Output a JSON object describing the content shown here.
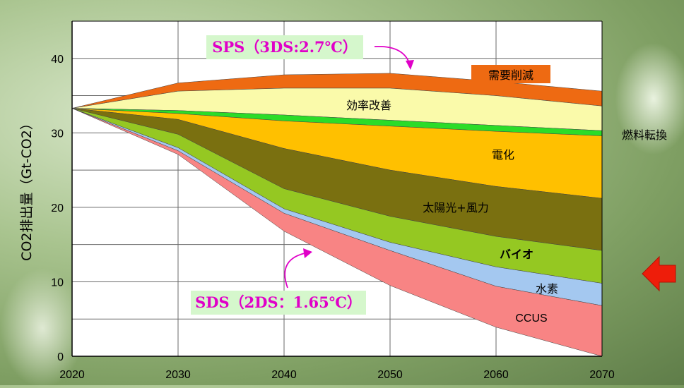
{
  "chart_data": {
    "type": "area",
    "ylabel": "CO2排出量（Gt-CO2）",
    "x": [
      2020,
      2030,
      2040,
      2050,
      2060,
      2070
    ],
    "xlim": [
      2020,
      2070
    ],
    "ylim": [
      0,
      45
    ],
    "yticks": [
      0,
      10,
      20,
      30,
      40
    ],
    "grid": "horizontal",
    "boundaries": {
      "sps": [
        33.3,
        36.7,
        37.8,
        38.0,
        36.9,
        35.6
      ],
      "efficiency": [
        33.3,
        35.6,
        36.0,
        36.0,
        35.0,
        33.6
      ],
      "fuel_top": [
        33.3,
        33.0,
        32.4,
        31.7,
        31.0,
        30.3
      ],
      "fuel_bottom": [
        33.3,
        32.6,
        31.6,
        30.9,
        30.2,
        29.6
      ],
      "electric": [
        33.3,
        31.8,
        27.9,
        25.0,
        22.8,
        21.2
      ],
      "solarwind": [
        33.3,
        29.8,
        22.5,
        18.8,
        16.1,
        14.2
      ],
      "bio": [
        33.3,
        28.0,
        19.8,
        15.3,
        12.0,
        9.8
      ],
      "hydrogen": [
        33.3,
        27.6,
        19.2,
        14.2,
        9.4,
        6.8
      ],
      "ccus": [
        33.3,
        27.1,
        16.8,
        9.5,
        3.9,
        0.0
      ]
    },
    "series": [
      {
        "name": "需要削減",
        "color": "#ee6a12",
        "upper": "sps",
        "lower": "efficiency"
      },
      {
        "name": "効率改善",
        "color": "#fafaaa",
        "upper": "efficiency",
        "lower": "fuel_top"
      },
      {
        "name": "燃料転換",
        "color": "#2bdc28",
        "upper": "fuel_top",
        "lower": "fuel_bottom"
      },
      {
        "name": "電化",
        "color": "#ffc000",
        "upper": "fuel_bottom",
        "lower": "electric"
      },
      {
        "name": "太陽光+風力",
        "color": "#7a7010",
        "upper": "electric",
        "lower": "solarwind"
      },
      {
        "name": "バイオ",
        "color": "#95c822",
        "upper": "solarwind",
        "lower": "bio"
      },
      {
        "name": "水素",
        "color": "#a4c8f0",
        "upper": "bio",
        "lower": "hydrogen"
      },
      {
        "name": "CCUS",
        "color": "#f88484",
        "upper": "hydrogen",
        "lower": "ccus"
      }
    ],
    "scenarios": [
      {
        "label": "SPS（3DS:2.7℃）"
      },
      {
        "label": "SDS（2DS：1.65℃）"
      }
    ]
  },
  "colors": {
    "scenario_text": "#e000c8",
    "scenario_box": "#d5f7cc",
    "bio_label": "#e02020",
    "arrow": "#ee1d0a"
  }
}
